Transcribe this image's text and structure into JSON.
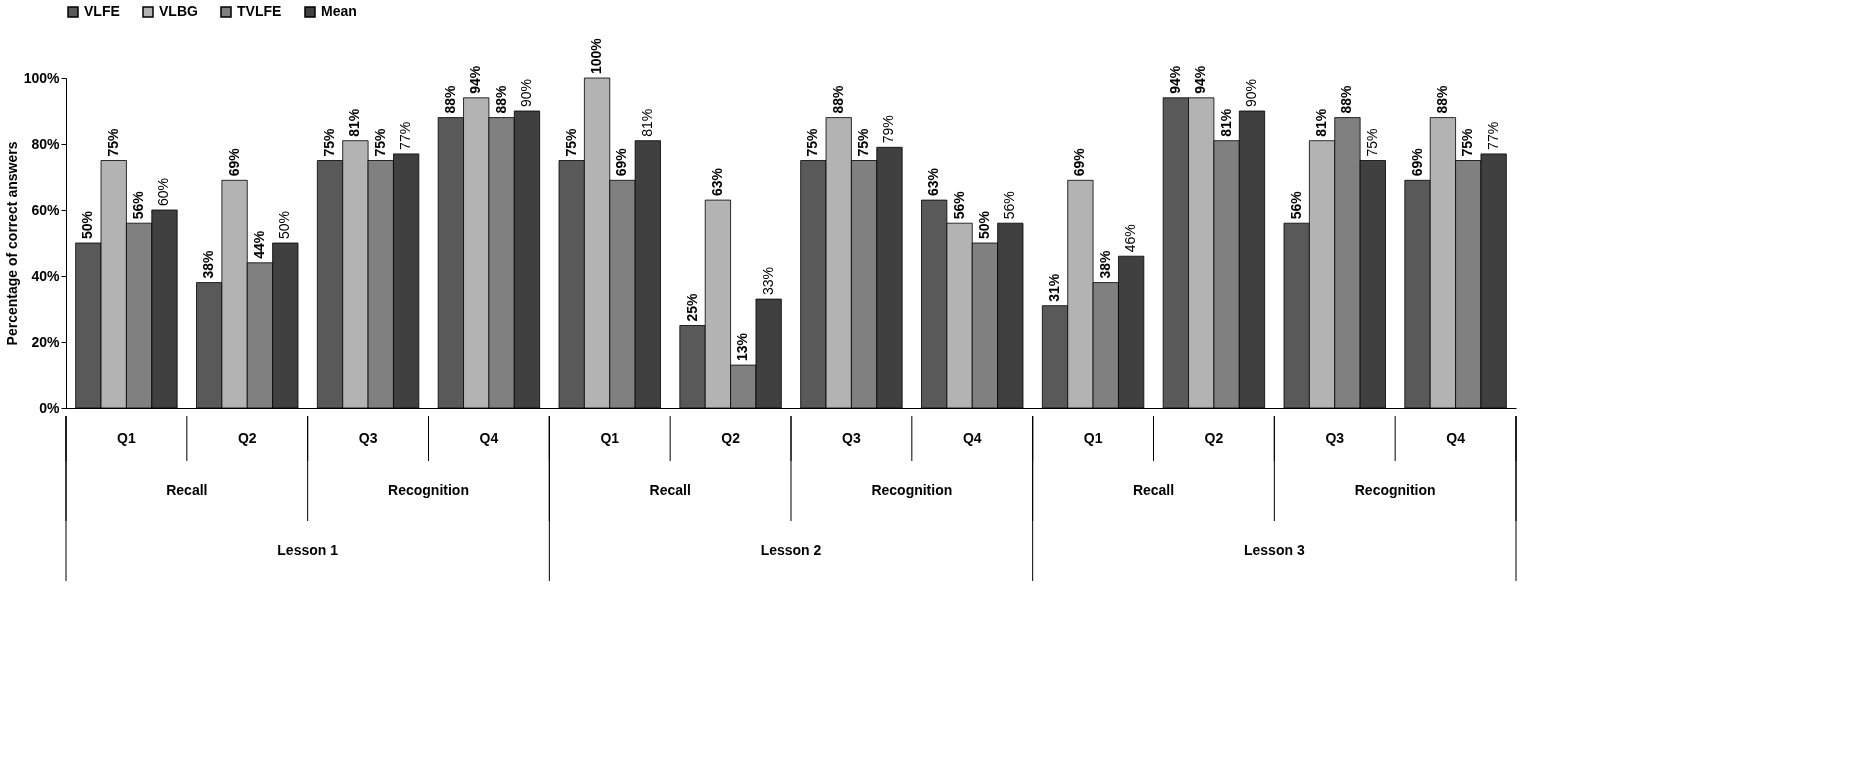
{
  "chart_data": {
    "type": "bar",
    "ylabel": "Percentage of correct answers",
    "categories": [
      "Q1",
      "Q2",
      "Q3",
      "Q4",
      "Q1",
      "Q2",
      "Q3",
      "Q4",
      "Q1",
      "Q2",
      "Q3",
      "Q4"
    ],
    "annotations": [
      "Recall",
      "Recognition",
      "Recall",
      "Recognition",
      "Recall",
      "Recognition",
      "Lesson 1",
      "Lesson 2",
      "Lesson 3"
    ],
    "series": [
      {
        "name": "VLFE",
        "color": "#595959",
        "values": [
          50,
          38,
          75,
          88,
          75,
          25,
          75,
          63,
          31,
          94,
          56,
          69
        ],
        "value_labels": [
          "50%",
          "38%",
          "75%",
          "88%",
          "75%",
          "25%",
          "75%",
          "63%",
          "31%",
          "94%",
          "56%",
          "69%"
        ]
      },
      {
        "name": "VLBG",
        "color": "#b3b3b3",
        "values": [
          75,
          69,
          81,
          94,
          100,
          63,
          88,
          56,
          69,
          94,
          81,
          88
        ],
        "value_labels": [
          "75%",
          "69%",
          "81%",
          "94%",
          "100%",
          "63%",
          "88%",
          "56%",
          "69%",
          "94%",
          "81%",
          "88%"
        ]
      },
      {
        "name": "TVLFE",
        "color": "#808080",
        "values": [
          56,
          44,
          75,
          88,
          69,
          13,
          75,
          50,
          38,
          81,
          88,
          75
        ],
        "value_labels": [
          "56%",
          "44%",
          "75%",
          "88%",
          "69%",
          "13%",
          "75%",
          "50%",
          "38%",
          "81%",
          "88%",
          "75%"
        ]
      },
      {
        "name": "Mean",
        "color": "#404040",
        "values": [
          60,
          50,
          77,
          90,
          81,
          33,
          79,
          56,
          46,
          90,
          75,
          77
        ],
        "value_labels": [
          "60%",
          "50%",
          "77%",
          "90%",
          "81%",
          "33%",
          "79%",
          "56%",
          "46%",
          "90%",
          "75%",
          "77%"
        ]
      }
    ],
    "ylim": [
      0,
      100
    ],
    "yticks": [
      {
        "value": 0,
        "label": "0%"
      },
      {
        "value": 20,
        "label": "20%"
      },
      {
        "value": 40,
        "label": "40%"
      },
      {
        "value": 60,
        "label": "60%"
      },
      {
        "value": 80,
        "label": "80%"
      },
      {
        "value": 100,
        "label": "100%"
      }
    ],
    "grid": false,
    "legend": "top"
  }
}
